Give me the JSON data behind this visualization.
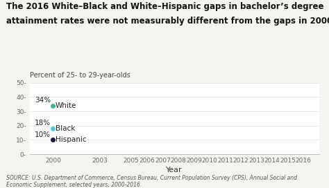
{
  "title_line1": "The 2016 White–Black and White–Hispanic gaps in bachelor’s degree",
  "title_line2": "attainment rates were not measurably different from the gaps in 2000.",
  "ylabel": "Percent of 25- to 29-year-olds",
  "xlabel": "Year",
  "source": "SOURCE: U.S. Department of Commerce, Census Bureau, Current Population Survey (CPS), Annual Social and\nEconomic Supplement, selected years, 2000-2016.",
  "ylim": [
    0,
    50
  ],
  "yticks": [
    0,
    10,
    20,
    30,
    40,
    50
  ],
  "ytick_labels": [
    "0-",
    "10-",
    "20-",
    "30-",
    "40-",
    "50-"
  ],
  "xticks": [
    2000,
    2003,
    2005,
    2006,
    2007,
    2008,
    2009,
    2010,
    2011,
    2012,
    2013,
    2014,
    2015,
    2016
  ],
  "xlim": [
    1998.5,
    2017
  ],
  "series": [
    {
      "name": "White",
      "color": "#3dba8c",
      "label_value": "34%",
      "year": 2000,
      "value": 34
    },
    {
      "name": "Black",
      "color": "#4ec8d4",
      "label_value": "18%",
      "year": 2000,
      "value": 18
    },
    {
      "name": "Hispanic",
      "color": "#1a1a3a",
      "label_value": "10%",
      "year": 2000,
      "value": 10
    }
  ],
  "bg_color": "#ffffff",
  "fig_bg_color": "#f5f5f0",
  "title_fontsize": 8.5,
  "ylabel_fontsize": 7,
  "xlabel_fontsize": 8,
  "tick_fontsize": 6.5,
  "label_fontsize": 7.5,
  "source_fontsize": 5.5
}
